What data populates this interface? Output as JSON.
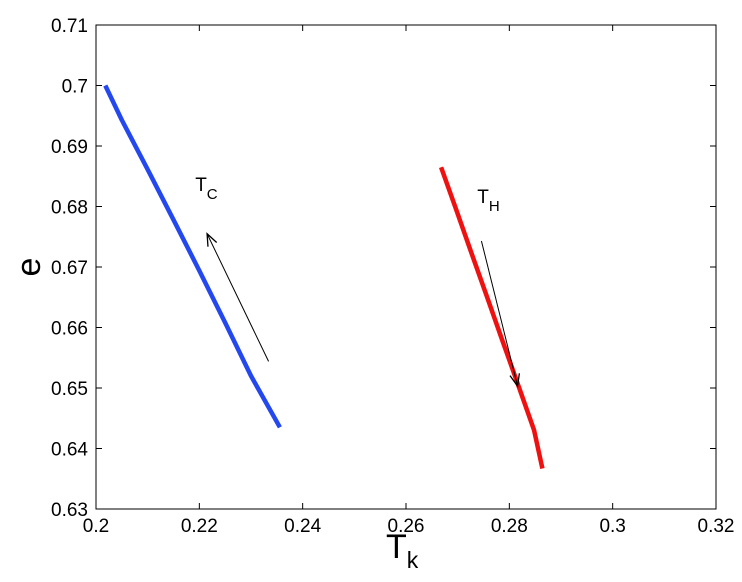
{
  "chart_data": {
    "type": "line",
    "title": "",
    "xlabel": "T",
    "xlabel_sub": "k",
    "ylabel": "e",
    "xlim": [
      0.2,
      0.32
    ],
    "ylim": [
      0.63,
      0.71
    ],
    "xticks": [
      0.2,
      0.22,
      0.24,
      0.26,
      0.28,
      0.3,
      0.32
    ],
    "xtick_labels": [
      "0.2",
      "0.22",
      "0.24",
      "0.26",
      "0.28",
      "0.3",
      "0.32"
    ],
    "yticks": [
      0.63,
      0.64,
      0.65,
      0.66,
      0.67,
      0.68,
      0.69,
      0.7,
      0.71
    ],
    "ytick_labels": [
      "0.63",
      "0.64",
      "0.65",
      "0.66",
      "0.67",
      "0.68",
      "0.69",
      "0.7",
      "0.71"
    ],
    "grid": false,
    "series": [
      {
        "color": "#2448f0",
        "x": [
          0.2018,
          0.205,
          0.21,
          0.215,
          0.22,
          0.225,
          0.23,
          0.2356
        ],
        "y": [
          0.7,
          0.6943,
          0.6861,
          0.6778,
          0.6694,
          0.6608,
          0.652,
          0.6435
        ]
      },
      {
        "color": "#f01010",
        "x": [
          0.2668,
          0.2698,
          0.2728,
          0.2758,
          0.2788,
          0.2818,
          0.2848,
          0.2864
        ],
        "y": [
          0.6865,
          0.6793,
          0.672,
          0.6648,
          0.6575,
          0.6503,
          0.643,
          0.6367
        ]
      }
    ],
    "annotations": [
      {
        "main": "T",
        "sub": "C",
        "x": 0.2192,
        "y": 0.6826
      },
      {
        "main": "T",
        "sub": "H",
        "x": 0.2738,
        "y": 0.6806
      }
    ],
    "arrows": [
      {
        "from": [
          0.2334,
          0.6544
        ],
        "to": [
          0.2215,
          0.6755
        ]
      },
      {
        "from": [
          0.2746,
          0.6743
        ],
        "to": [
          0.2816,
          0.6503
        ]
      }
    ]
  }
}
